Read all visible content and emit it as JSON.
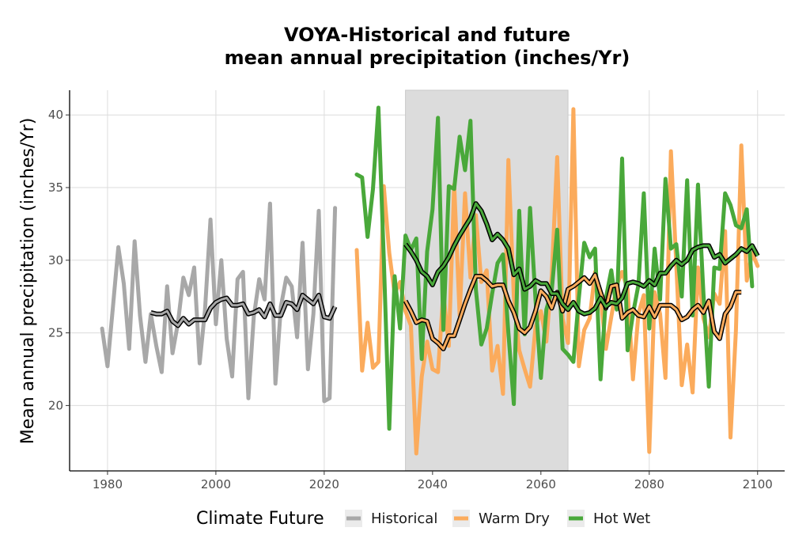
{
  "chart_data": {
    "type": "line",
    "title_line1": "VOYA-Historical and future",
    "title_line2": "mean annual precipitation (inches/Yr)",
    "xlabel": "",
    "ylabel": "Mean annual precipitation (inches/Yr)",
    "xlim": [
      1973,
      2105
    ],
    "ylim": [
      15.5,
      41.7
    ],
    "x_ticks": [
      1980,
      2000,
      2020,
      2040,
      2060,
      2080,
      2100
    ],
    "y_ticks": [
      20,
      25,
      30,
      35,
      40
    ],
    "grid": true,
    "shaded_period": [
      2035,
      2065
    ],
    "legend": {
      "title": "Climate Future",
      "position": "bottom",
      "entries": [
        {
          "label": "Historical",
          "color": "#a8a8a8"
        },
        {
          "label": "Warm Dry",
          "color": "#fbab5c"
        },
        {
          "label": "Hot Wet",
          "color": "#49a83a"
        }
      ]
    },
    "series": [
      {
        "name": "Historical",
        "color": "#a8a8a8",
        "x_start": 1979,
        "values": [
          25.3,
          22.7,
          26.8,
          30.9,
          28.4,
          23.9,
          31.3,
          26.2,
          23.0,
          26.3,
          24.1,
          22.3,
          28.2,
          23.6,
          25.7,
          28.8,
          27.6,
          29.5,
          22.9,
          26.6,
          32.8,
          25.6,
          30.0,
          24.6,
          22.0,
          28.7,
          29.2,
          20.5,
          26.1,
          28.7,
          27.3,
          33.9,
          21.5,
          26.8,
          28.8,
          28.2,
          24.7,
          31.2,
          22.5,
          26.3,
          33.4,
          20.3,
          20.5,
          33.6
        ],
        "smooth_x_start": 1988,
        "smooth": [
          26.4,
          26.3,
          26.3,
          26.5,
          25.8,
          25.5,
          26.0,
          25.6,
          25.9,
          25.9,
          25.9,
          26.7,
          27.1,
          27.3,
          27.4,
          26.9,
          26.9,
          27.0,
          26.3,
          26.4,
          26.6,
          26.1,
          27.0,
          26.2,
          26.2,
          27.1,
          27.0,
          26.6,
          27.6,
          27.3,
          27.0,
          27.6,
          26.1,
          26.0,
          26.8
        ]
      },
      {
        "name": "Warm Dry",
        "color": "#fbab5c",
        "x_start": 2026,
        "values": [
          30.7,
          22.4,
          25.7,
          22.6,
          23.0,
          35.1,
          30.5,
          27.7,
          28.5,
          26.5,
          25.5,
          16.7,
          22.0,
          24.4,
          22.5,
          22.3,
          27.8,
          24.1,
          35.2,
          26.2,
          34.6,
          28.8,
          33.1,
          28.5,
          29.3,
          22.4,
          24.1,
          20.8,
          36.9,
          27.5,
          23.8,
          22.5,
          21.3,
          25.4,
          26.5,
          24.4,
          28.9,
          37.1,
          26.0,
          24.3,
          40.4,
          22.7,
          25.2,
          26.0,
          29.2,
          27.5,
          23.9,
          26.1,
          28.3,
          29.2,
          28.0,
          21.8,
          26.3,
          27.6,
          16.8,
          27.8,
          26.3,
          21.9,
          37.5,
          29.7,
          21.4,
          24.2,
          20.9,
          29.5,
          26.0,
          24.7,
          27.7,
          27.0,
          32.0,
          17.8,
          25.2,
          37.9,
          28.6,
          30.5,
          29.6
        ],
        "smooth_x_start": 2035,
        "smooth": [
          27.2,
          26.5,
          25.7,
          25.9,
          25.8,
          24.6,
          24.3,
          23.9,
          24.8,
          24.8,
          25.9,
          27.0,
          28.0,
          28.9,
          28.9,
          28.6,
          28.2,
          28.3,
          28.3,
          27.2,
          26.4,
          25.3,
          25.0,
          25.4,
          26.5,
          27.9,
          27.5,
          26.7,
          27.8,
          26.5,
          28.0,
          28.2,
          28.5,
          28.8,
          28.4,
          29.0,
          27.8,
          26.7,
          28.2,
          28.3,
          26.0,
          26.4,
          26.6,
          26.2,
          26.1,
          26.8,
          26.1,
          26.9,
          26.9,
          26.9,
          26.6,
          25.9,
          26.1,
          26.6,
          26.9,
          26.4,
          27.2,
          25.1,
          24.6,
          26.3,
          26.8,
          27.8,
          27.8
        ]
      },
      {
        "name": "Hot Wet",
        "color": "#49a83a",
        "x_start": 2026,
        "values": [
          35.9,
          35.7,
          31.6,
          34.9,
          40.5,
          30.1,
          18.4,
          28.9,
          25.3,
          31.7,
          30.7,
          31.5,
          23.2,
          30.6,
          33.5,
          39.8,
          25.2,
          35.1,
          34.9,
          38.5,
          36.2,
          39.6,
          28.0,
          24.2,
          25.3,
          27.7,
          29.8,
          30.4,
          25.0,
          20.1,
          33.4,
          24.9,
          33.6,
          27.3,
          21.9,
          26.6,
          27.9,
          32.1,
          23.9,
          23.5,
          23.0,
          27.4,
          31.2,
          30.2,
          30.8,
          21.8,
          27.4,
          29.3,
          26.6,
          37.0,
          23.8,
          26.3,
          28.3,
          34.6,
          25.3,
          30.8,
          27.3,
          35.6,
          30.8,
          31.1,
          27.5,
          35.5,
          26.2,
          35.2,
          27.7,
          21.3,
          29.5,
          29.4,
          34.6,
          33.8,
          32.4,
          32.2,
          33.5,
          28.2
        ],
        "smooth_x_start": 2035,
        "smooth": [
          31.1,
          30.6,
          30.0,
          29.2,
          28.9,
          28.3,
          29.2,
          29.6,
          30.2,
          31.0,
          31.7,
          32.3,
          32.9,
          33.9,
          33.4,
          32.5,
          31.4,
          31.8,
          31.4,
          30.8,
          29.0,
          29.4,
          28.0,
          28.2,
          28.6,
          28.4,
          28.4,
          27.7,
          27.7,
          27.0,
          26.6,
          27.1,
          26.5,
          26.3,
          26.4,
          26.7,
          27.4,
          26.8,
          27.1,
          27.0,
          27.4,
          28.4,
          28.5,
          28.4,
          28.2,
          28.6,
          28.3,
          29.1,
          29.1,
          29.6,
          30.0,
          29.7,
          30.0,
          30.7,
          30.9,
          31.0,
          31.0,
          30.2,
          30.4,
          29.8,
          30.1,
          30.4,
          30.8,
          30.6,
          31.0,
          30.3
        ]
      }
    ]
  }
}
